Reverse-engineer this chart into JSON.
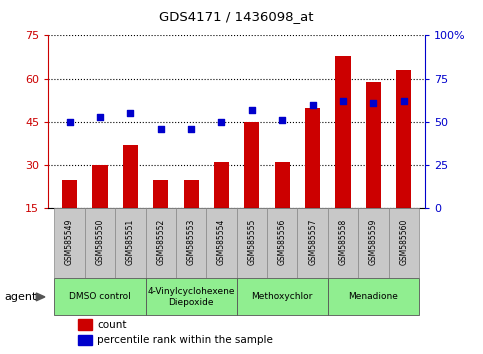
{
  "title": "GDS4171 / 1436098_at",
  "samples": [
    "GSM585549",
    "GSM585550",
    "GSM585551",
    "GSM585552",
    "GSM585553",
    "GSM585554",
    "GSM585555",
    "GSM585556",
    "GSM585557",
    "GSM585558",
    "GSM585559",
    "GSM585560"
  ],
  "counts": [
    25,
    30,
    37,
    25,
    25,
    31,
    45,
    31,
    50,
    68,
    59,
    63
  ],
  "percentile_ranks": [
    50,
    53,
    55,
    46,
    46,
    50,
    57,
    51,
    60,
    62,
    61,
    62
  ],
  "ylim_left": [
    15,
    75
  ],
  "ylim_right": [
    0,
    100
  ],
  "yticks_left": [
    15,
    30,
    45,
    60,
    75
  ],
  "yticks_right": [
    0,
    25,
    50,
    75,
    100
  ],
  "ytick_labels_right": [
    "0",
    "25",
    "50",
    "75",
    "100%"
  ],
  "bar_color": "#cc0000",
  "dot_color": "#0000cc",
  "bar_width": 0.5,
  "agents": [
    {
      "label": "DMSO control",
      "start": 0,
      "end": 3,
      "two_line": false
    },
    {
      "label": "4-Vinylcyclohexene\nDiepoxide",
      "start": 3,
      "end": 6,
      "two_line": true
    },
    {
      "label": "Methoxychlor",
      "start": 6,
      "end": 9,
      "two_line": false
    },
    {
      "label": "Menadione",
      "start": 9,
      "end": 12,
      "two_line": false
    }
  ],
  "agent_light_green": "#b2f0b2",
  "agent_green": "#66dd66",
  "grid_color": "#000000",
  "background_color": "#ffffff",
  "tick_bg_color": "#c8c8c8",
  "legend_count_color": "#cc0000",
  "legend_dot_color": "#0000cc"
}
